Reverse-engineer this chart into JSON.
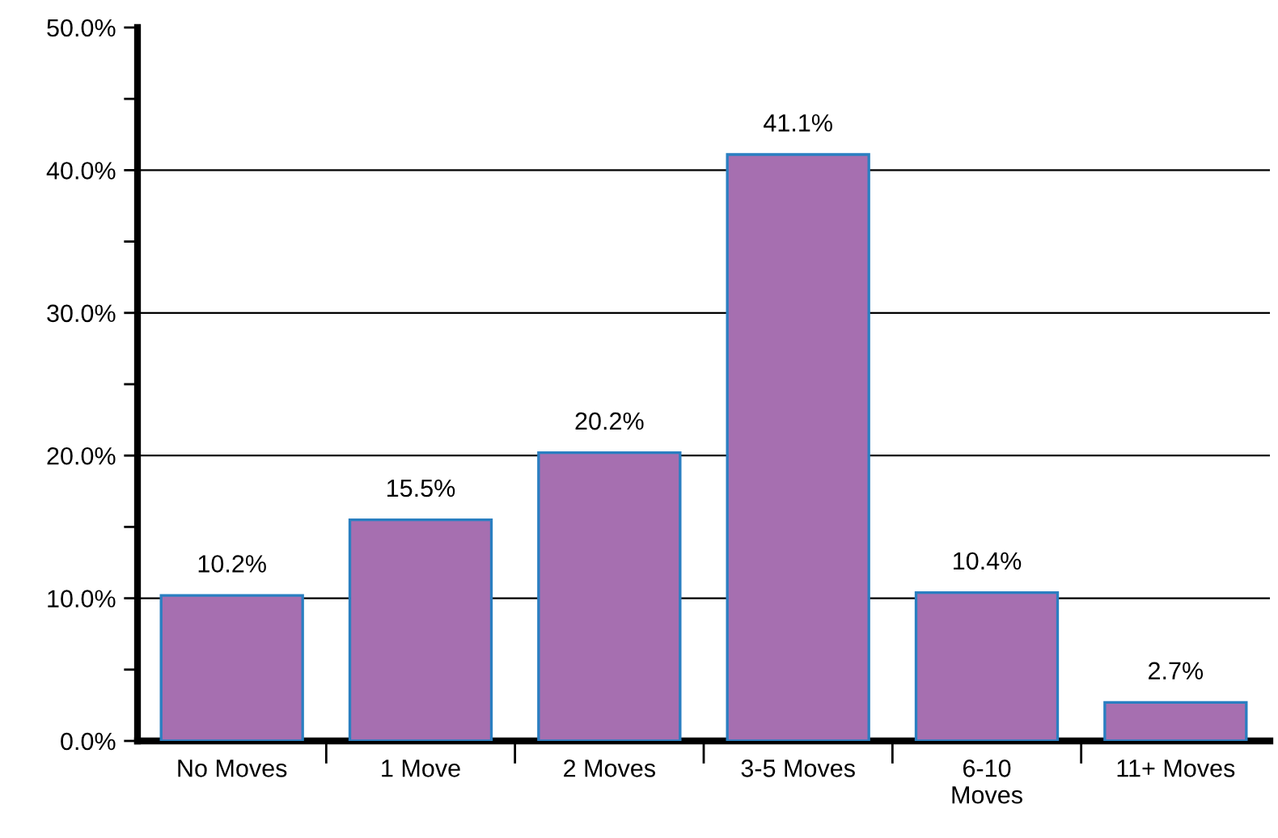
{
  "chart_data": {
    "type": "bar",
    "categories": [
      "No Moves",
      "1 Move",
      "2 Moves",
      "3-5 Moves",
      "6-10\nMoves",
      "11+ Moves"
    ],
    "values": [
      10.2,
      15.5,
      20.2,
      41.1,
      10.4,
      2.7
    ],
    "value_labels": [
      "10.2%",
      "15.5%",
      "20.2%",
      "41.1%",
      "10.4%",
      "2.7%"
    ],
    "color": "#a66fb0",
    "ylim": [
      0,
      50
    ],
    "yticks": [
      {
        "value": 0,
        "label": "0.0%"
      },
      {
        "value": 5,
        "label": null
      },
      {
        "value": 10,
        "label": "10.0%"
      },
      {
        "value": 15,
        "label": null
      },
      {
        "value": 20,
        "label": "20.0%"
      },
      {
        "value": 25,
        "label": null
      },
      {
        "value": 30,
        "label": "30.0%"
      },
      {
        "value": 35,
        "label": null
      },
      {
        "value": 40,
        "label": "40.0%"
      },
      {
        "value": 45,
        "label": null
      },
      {
        "value": 50,
        "label": "50.0%"
      }
    ],
    "grid": "y"
  }
}
